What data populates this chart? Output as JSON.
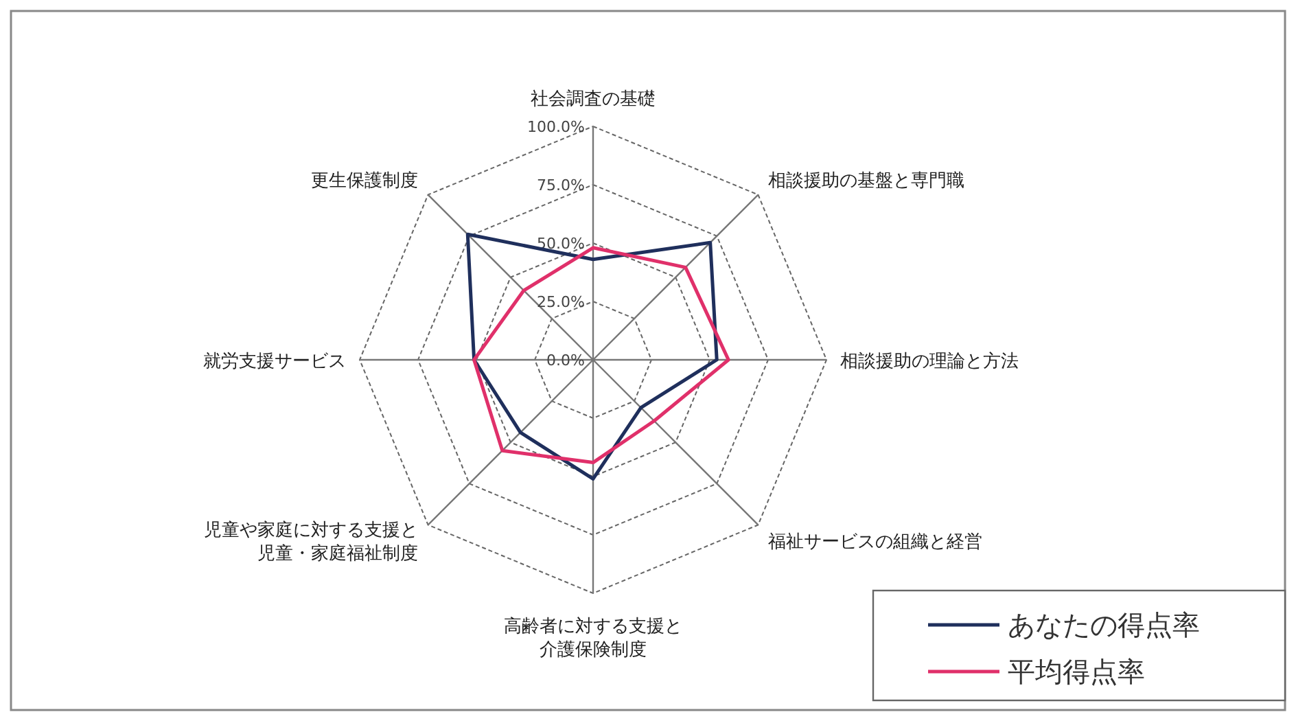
{
  "chart_data": {
    "type": "radar",
    "categories": [
      "社会調査の基礎",
      "相談援助の基盤と専門職",
      "相談援助の理論と方法",
      "福祉サービスの組織と経営",
      "高齢者に対する支援と介護保険制度",
      "児童や家庭に対する支援と児童・家庭福祉制度",
      "就労支援サービス",
      "更生保護制度"
    ],
    "series": [
      {
        "name": "あなたの得点率",
        "color": "#1f2f5c",
        "values": [
          43,
          71,
          53,
          29,
          51,
          44,
          51,
          76
        ]
      },
      {
        "name": "平均得点率",
        "color": "#e0306a",
        "values": [
          48,
          56,
          58,
          37,
          44,
          55,
          51,
          42
        ]
      }
    ],
    "ylim": [
      0,
      100
    ],
    "yticks": [
      {
        "value": 0,
        "label": "0.0%"
      },
      {
        "value": 25,
        "label": "25.0%"
      },
      {
        "value": 50,
        "label": "50.0%"
      },
      {
        "value": 75,
        "label": "75.0%"
      },
      {
        "value": 100,
        "label": "100.0%"
      }
    ],
    "grid": true,
    "legend": "bottom right"
  }
}
